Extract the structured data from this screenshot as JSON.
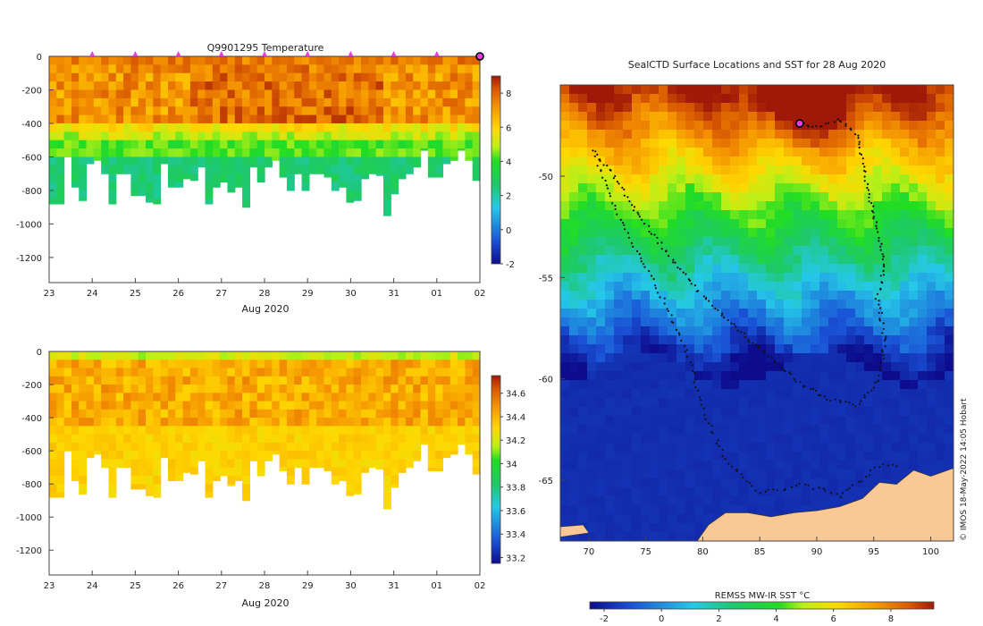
{
  "chart_data": [
    {
      "id": "temperature-section",
      "type": "heatmap",
      "title": "Q9901295  Temperature",
      "ylabel": "",
      "xlabel": "Aug 2020",
      "x_ticks": [
        "23",
        "24",
        "25",
        "26",
        "27",
        "28",
        "29",
        "30",
        "31",
        "01",
        "02"
      ],
      "y_ticks": [
        "0",
        "-200",
        "-400",
        "-600",
        "-800",
        "-1000",
        "-1200"
      ],
      "x_range_days": [
        23,
        33
      ],
      "y_range_m": [
        0,
        -1350
      ],
      "colorbar_ticks": [
        "8",
        "6",
        "4",
        "2",
        "0",
        "-2"
      ],
      "colorbar_range": [
        -2,
        9
      ],
      "surface_markers_days": [
        24,
        25,
        26,
        27,
        28,
        29,
        30,
        31,
        32
      ],
      "latest_marker_day": 33,
      "approx_profile_depths_m": [
        880,
        880,
        600,
        780,
        860,
        640,
        620,
        700,
        880,
        700,
        700,
        830,
        830,
        870,
        880,
        640,
        780,
        780,
        730,
        740,
        660,
        880,
        780,
        750,
        810,
        780,
        900,
        660,
        750,
        660,
        620,
        720,
        800,
        700,
        800,
        700,
        700,
        720,
        800,
        780,
        870,
        860,
        730,
        700,
        710,
        950,
        820,
        730,
        700,
        660,
        560,
        720,
        720,
        640,
        620,
        560,
        620,
        740
      ]
    },
    {
      "id": "salinity-section",
      "type": "heatmap",
      "title": "",
      "xlabel": "Aug 2020",
      "x_ticks": [
        "23",
        "24",
        "25",
        "26",
        "27",
        "28",
        "29",
        "30",
        "31",
        "01",
        "02"
      ],
      "y_ticks": [
        "0",
        "-200",
        "-400",
        "-600",
        "-800",
        "-1000",
        "-1200"
      ],
      "x_range_days": [
        23,
        33
      ],
      "y_range_m": [
        0,
        -1350
      ],
      "colorbar_ticks": [
        "34.6",
        "34.4",
        "34.2",
        "34",
        "33.8",
        "33.6",
        "33.4",
        "33.2"
      ],
      "colorbar_range": [
        33.15,
        34.75
      ]
    },
    {
      "id": "sst-map",
      "type": "heatmap",
      "title": "SealCTD Surface Locations and SST for 28 Aug 2020",
      "xlabel": "",
      "x_ticks": [
        "70",
        "75",
        "80",
        "85",
        "90",
        "95",
        "100"
      ],
      "y_ticks": [
        "-50",
        "-55",
        "-60",
        "-65"
      ],
      "lon_range": [
        67.5,
        102
      ],
      "lat_range": [
        -68,
        -45.5
      ],
      "colorbar_label": "REMSS MW-IR SST °C",
      "colorbar_ticks": [
        "-2",
        "0",
        "2",
        "4",
        "6",
        "8"
      ],
      "colorbar_range": [
        -2.5,
        9.5
      ],
      "current_location": {
        "lon": 88.5,
        "lat": -47.4
      },
      "track_waypoints": [
        [
          70.5,
          -48.8
        ],
        [
          72.0,
          -49.8
        ],
        [
          73.5,
          -51.2
        ],
        [
          75.5,
          -52.8
        ],
        [
          77.5,
          -54.2
        ],
        [
          79.5,
          -55.6
        ],
        [
          82.0,
          -57.0
        ],
        [
          84.0,
          -58.0
        ],
        [
          86.0,
          -59.0
        ],
        [
          88.5,
          -60.2
        ],
        [
          91.0,
          -61.0
        ],
        [
          93.5,
          -61.3
        ],
        [
          95.5,
          -60.0
        ],
        [
          96.0,
          -58.0
        ],
        [
          95.3,
          -56.0
        ],
        [
          96.0,
          -54.5
        ],
        [
          95.0,
          -52.0
        ],
        [
          94.3,
          -50.0
        ],
        [
          93.5,
          -48.0
        ],
        [
          92.0,
          -47.2
        ],
        [
          90.0,
          -47.6
        ],
        [
          88.5,
          -47.4
        ]
      ],
      "track_waypoints_south": [
        [
          70.5,
          -48.8
        ],
        [
          73.0,
          -52.5
        ],
        [
          76.0,
          -55.5
        ],
        [
          78.5,
          -58.5
        ],
        [
          80.0,
          -61.5
        ],
        [
          82.0,
          -64.0
        ],
        [
          85.0,
          -65.6
        ],
        [
          89.0,
          -65.2
        ],
        [
          92.0,
          -65.8
        ],
        [
          95.5,
          -64.3
        ],
        [
          97.5,
          -64.2
        ]
      ]
    }
  ],
  "watermark": "© IMOS 18-May-2022 14:05 Hobart",
  "colors": {
    "temperature_scale": [
      "#0c0c8c",
      "#1a52d6",
      "#25c8e8",
      "#1ec86a",
      "#22dd22",
      "#b8f018",
      "#ffd800",
      "#f49200",
      "#d85800",
      "#a01808"
    ],
    "salinity_scale": [
      "#0c0c8c",
      "#1a52d6",
      "#25c8e8",
      "#1ec86a",
      "#22dd22",
      "#b8f018",
      "#ffd800",
      "#f49200",
      "#d85800",
      "#a01808"
    ],
    "land": "#f9c895",
    "marker": "#e040e0"
  }
}
